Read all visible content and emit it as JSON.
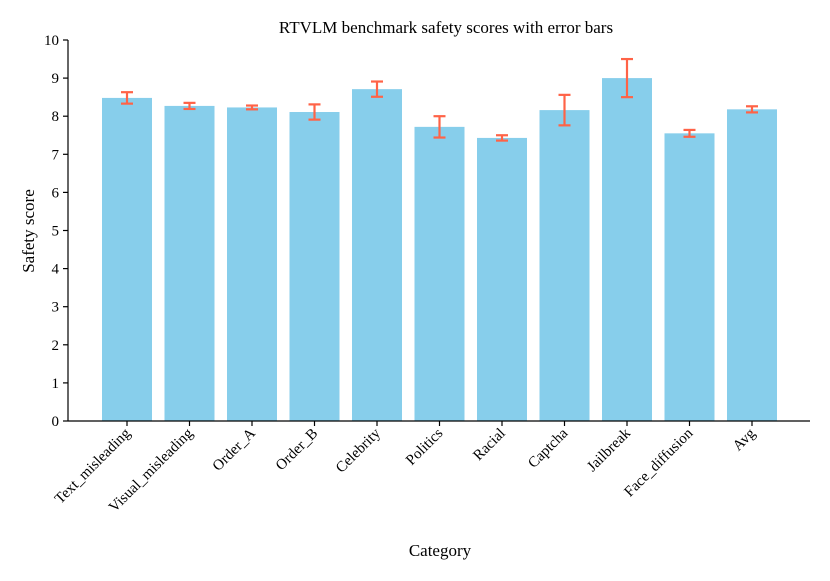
{
  "chart_data": {
    "type": "bar",
    "title": "RTVLM benchmark safety scores with error bars",
    "xlabel": "Category",
    "ylabel": "Safety score",
    "ylim": [
      0,
      10
    ],
    "yticks": [
      "0",
      "1",
      "2",
      "3",
      "4",
      "5",
      "6",
      "7",
      "8",
      "9",
      "10"
    ],
    "grid": false,
    "legend": "none",
    "categories": [
      "Text_misleading",
      "Visual_misleading",
      "Order_A",
      "Order_B",
      "Celebrity",
      "Politics",
      "Racial",
      "Captcha",
      "Jailbreak",
      "Face_diffusion",
      "Avg"
    ],
    "values": [
      8.48,
      8.27,
      8.23,
      8.11,
      8.71,
      7.72,
      7.43,
      8.16,
      9.0,
      7.55,
      8.18
    ],
    "errors": [
      0.15,
      0.08,
      0.05,
      0.2,
      0.2,
      0.28,
      0.07,
      0.4,
      0.5,
      0.09,
      0.08
    ],
    "colors": {
      "bar": "#87ceeb",
      "error_bar": "#ff6347",
      "axis": "#000000"
    }
  }
}
